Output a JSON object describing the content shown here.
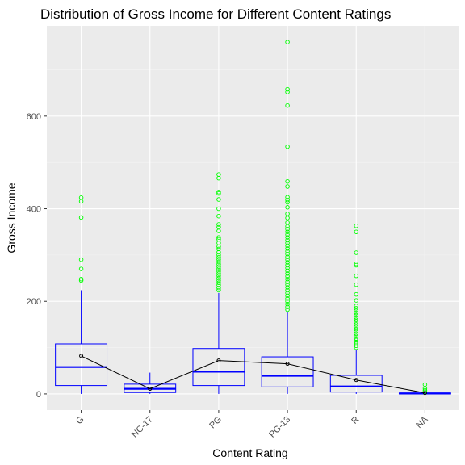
{
  "chart_data": {
    "type": "box",
    "title": "Distribution of Gross Income for Different Content Ratings",
    "xlabel": "Content Rating",
    "ylabel": "Gross Income",
    "ylim": [
      -35,
      795
    ],
    "yticks": [
      0,
      200,
      400,
      600
    ],
    "grid": true,
    "colors": {
      "panel": "#ebebeb",
      "grid_major": "#ffffff",
      "box": "#0000ff",
      "outlier": "#00ff00",
      "mean_line": "#000000"
    },
    "categories": [
      "G",
      "NC-17",
      "PG",
      "PG-13",
      "R",
      "NA"
    ],
    "boxes": [
      {
        "category": "G",
        "whisker_low": 0,
        "q1": 18,
        "median": 58,
        "q3": 108,
        "whisker_high": 224,
        "mean": 82,
        "outliers": [
          424,
          416,
          381,
          290,
          270,
          248,
          245
        ]
      },
      {
        "category": "NC-17",
        "whisker_low": 0,
        "q1": 3,
        "median": 11,
        "q3": 21,
        "whisker_high": 46,
        "mean": 11,
        "outliers": []
      },
      {
        "category": "PG",
        "whisker_low": 0,
        "q1": 18,
        "median": 48,
        "q3": 98,
        "whisker_high": 218,
        "mean": 72,
        "outliers": [
          474,
          466,
          436,
          433,
          420,
          400,
          384,
          366,
          360,
          352,
          338,
          334,
          326,
          318,
          313,
          306,
          300,
          295,
          290,
          285,
          280,
          275,
          270,
          265,
          260,
          255,
          250,
          245,
          240,
          235,
          229,
          224
        ]
      },
      {
        "category": "PG-13",
        "whisker_low": 0,
        "q1": 15,
        "median": 39,
        "q3": 80,
        "whisker_high": 178,
        "mean": 65,
        "outliers": [
          760,
          658,
          652,
          623,
          534,
          459,
          448,
          425,
          419,
          414,
          403,
          389,
          380,
          370,
          362,
          356,
          350,
          344,
          338,
          332,
          326,
          320,
          314,
          308,
          302,
          296,
          290,
          284,
          278,
          272,
          266,
          260,
          254,
          248,
          242,
          236,
          230,
          224,
          218,
          212,
          206,
          200,
          194,
          188,
          182
        ]
      },
      {
        "category": "R",
        "whisker_low": 0,
        "q1": 4,
        "median": 16,
        "q3": 40,
        "whisker_high": 95,
        "mean": 30,
        "outliers": [
          363,
          350,
          305,
          281,
          278,
          255,
          236,
          215,
          202,
          190,
          185,
          180,
          175,
          170,
          165,
          160,
          155,
          150,
          145,
          140,
          135,
          130,
          125,
          120,
          116,
          112,
          108,
          104,
          100
        ]
      },
      {
        "category": "NA",
        "whisker_low": 0,
        "q1": 0,
        "median": 1,
        "q3": 2,
        "whisker_high": 4,
        "mean": 2,
        "outliers": [
          20,
          12,
          8,
          5
        ]
      }
    ]
  }
}
